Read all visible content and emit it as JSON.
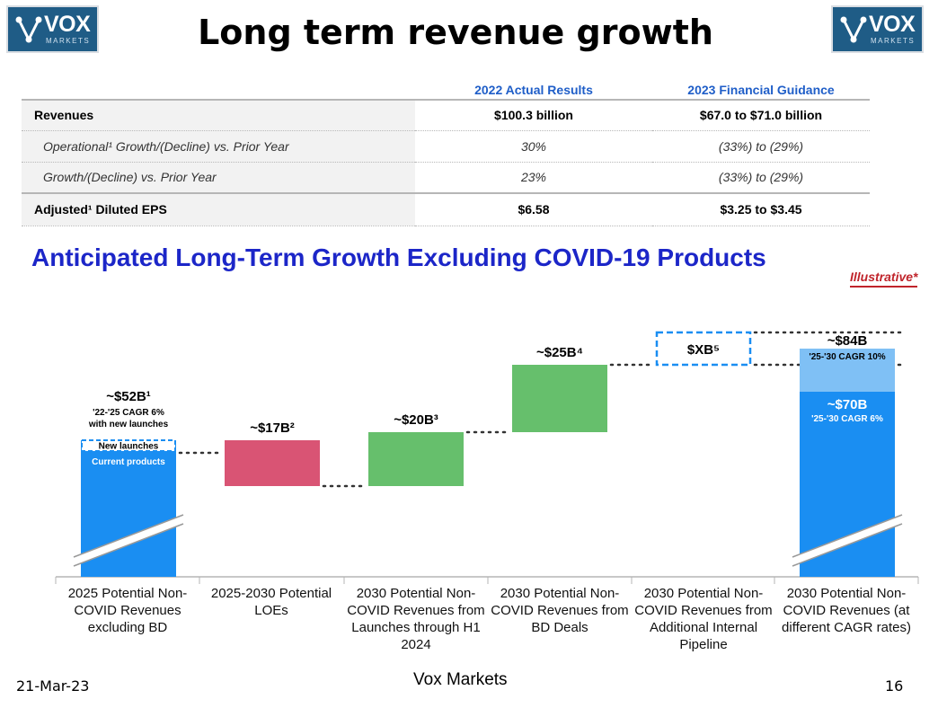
{
  "logo": {
    "brand": "VOX",
    "sub": "MARKETS"
  },
  "title": "Long term revenue growth",
  "table": {
    "headers": [
      "",
      "2022 Actual Results",
      "2023 Financial Guidance"
    ],
    "rows": [
      {
        "label": "Revenues",
        "actual": "$100.3 billion",
        "guidance": "$67.0 to $71.0 billion"
      },
      {
        "label": "Operational¹ Growth/(Decline) vs. Prior Year",
        "actual": "30%",
        "guidance": "(33%) to (29%)"
      },
      {
        "label": "Growth/(Decline) vs. Prior Year",
        "actual": "23%",
        "guidance": "(33%) to (29%)"
      },
      {
        "label": "Adjusted¹ Diluted EPS",
        "actual": "$6.58",
        "guidance": "$3.25 to $3.45"
      }
    ]
  },
  "subtitle": "Anticipated Long-Term Growth Excluding COVID-19 Products",
  "illustrative": "Illustrative*",
  "chart_data": {
    "type": "bar",
    "subtype": "waterfall",
    "unit": "$B (approximate)",
    "categories": [
      "2025 Potential Non-COVID Revenues excluding BD",
      "2025-2030 Potential LOEs",
      "2030 Potential Non-COVID Revenues from Launches through H1 2024",
      "2030 Potential Non-COVID Revenues from BD Deals",
      "2030 Potential Non-COVID Revenues from Additional Internal Pipeline",
      "2030 Potential Non-COVID Revenues (at different CAGR rates)"
    ],
    "steps": [
      {
        "value": 52,
        "kind": "total",
        "label": "~$52B¹",
        "note1": "'22-'25 CAGR 6%",
        "note2": "with new launches",
        "inner_top": "New launches",
        "inner_bottom": "Current products",
        "color": "#1a8ef2"
      },
      {
        "value": -17,
        "kind": "decrease",
        "label": "~$17B²",
        "color": "#d95474"
      },
      {
        "value": 20,
        "kind": "increase",
        "label": "~$20B³",
        "color": "#66bf6c"
      },
      {
        "value": 25,
        "kind": "increase",
        "label": "~$25B⁴",
        "color": "#66bf6c"
      },
      {
        "value": null,
        "kind": "unknown",
        "label": "$XB⁵",
        "color": "#1a8ef2"
      },
      {
        "value": 84,
        "kind": "total",
        "label": "~$84B",
        "note1": "'25-'30 CAGR 10%",
        "value_low": 70,
        "label_low": "~$70B",
        "note_low": "'25-'30 CAGR 6%",
        "color": "#1a8ef2",
        "color_upper": "#7fc0f5"
      }
    ],
    "axis_break": true
  },
  "footer": {
    "date": "21-Mar-23",
    "source": "Vox Markets",
    "page": "16"
  }
}
